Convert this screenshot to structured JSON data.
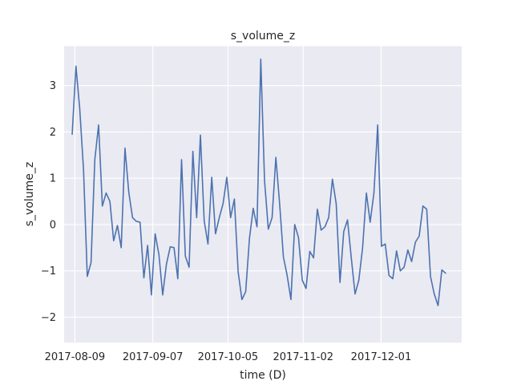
{
  "chart_data": {
    "type": "line",
    "title": "s_volume_z",
    "xlabel": "time (D)",
    "ylabel": "s_volume_z",
    "x_start": "2017-08-08",
    "x_end": "2017-12-25",
    "xlim": [
      "2017-08-05",
      "2017-12-31"
    ],
    "ylim": [
      -2.55,
      3.85
    ],
    "x_ticks": [
      "2017-08-09",
      "2017-09-07",
      "2017-10-05",
      "2017-11-02",
      "2017-12-01"
    ],
    "y_ticks": [
      -2,
      -1,
      0,
      1,
      2,
      3
    ],
    "grid": true,
    "background": "#eaeaf2",
    "line_color": "#4c72b0",
    "series": [
      {
        "values": [
          1.95,
          3.42,
          2.5,
          1.2,
          -1.12,
          -0.82,
          1.4,
          2.15,
          0.4,
          0.68,
          0.5,
          -0.35,
          -0.02,
          -0.5,
          1.65,
          0.7,
          0.15,
          0.07,
          0.05,
          -1.15,
          -0.45,
          -1.52,
          -0.2,
          -0.65,
          -1.52,
          -0.85,
          -0.48,
          -0.5,
          -1.17,
          1.4,
          -0.68,
          -0.92,
          1.58,
          0.15,
          1.93,
          0.08,
          -0.42,
          1.02,
          -0.2,
          0.15,
          0.45,
          1.02,
          0.15,
          0.55,
          -1.02,
          -1.62,
          -1.45,
          -0.3,
          0.35,
          -0.05,
          3.57,
          0.95,
          -0.1,
          0.15,
          1.45,
          0.45,
          -0.7,
          -1.1,
          -1.62,
          0.0,
          -0.28,
          -1.2,
          -1.38,
          -0.58,
          -0.72,
          0.33,
          -0.12,
          -0.05,
          0.15,
          0.98,
          0.45,
          -1.25,
          -0.15,
          0.1,
          -0.72,
          -1.5,
          -1.2,
          -0.5,
          0.68,
          0.05,
          0.68,
          2.15,
          -0.47,
          -0.42,
          -1.1,
          -1.17,
          -0.57,
          -1.0,
          -0.92,
          -0.55,
          -0.8,
          -0.38,
          -0.25,
          0.4,
          0.33,
          -1.12,
          -1.5,
          -1.75,
          -0.98,
          -1.05
        ]
      }
    ]
  }
}
